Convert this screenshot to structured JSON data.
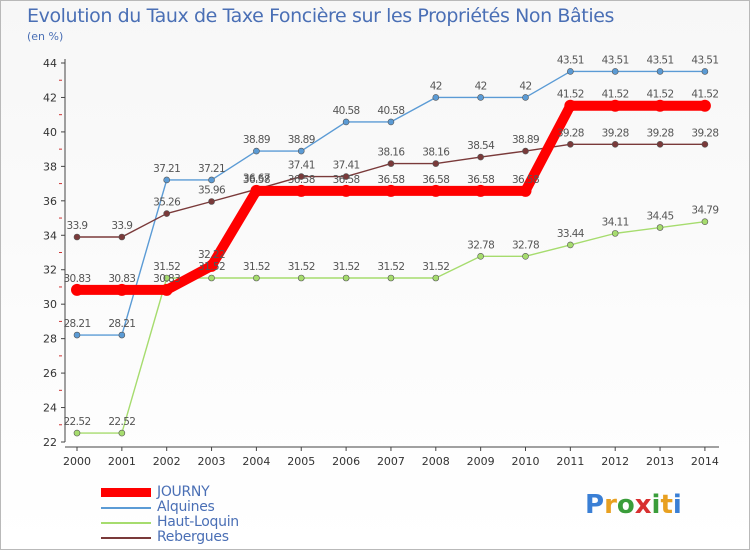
{
  "title": "Evolution du Taux de Taxe Foncière sur les Propriétés Non Bâties",
  "unit_label": "(en %)",
  "brand": {
    "letters": [
      "P",
      "r",
      "o",
      "x",
      "i",
      "t",
      "i"
    ],
    "colors": [
      "#3a7fd5",
      "#e8a020",
      "#3a9d3a",
      "#d83030",
      "#3a9d3a",
      "#e8a020",
      "#3a7fd5"
    ]
  },
  "chart_data": {
    "type": "line",
    "title": "Evolution du Taux de Taxe Foncière sur les Propriétés Non Bâties",
    "ylabel": "(en %)",
    "xlabel": "",
    "ylim": [
      22,
      44
    ],
    "yticks": [
      22,
      24,
      26,
      28,
      30,
      32,
      34,
      36,
      38,
      40,
      42,
      44
    ],
    "grid": false,
    "legend_position": "bottom-left",
    "x": [
      2000,
      2001,
      2002,
      2003,
      2004,
      2005,
      2006,
      2007,
      2008,
      2009,
      2010,
      2011,
      2012,
      2013,
      2014
    ],
    "series": [
      {
        "name": "JOURNY",
        "color": "#ff0000",
        "emphasis": true,
        "values": [
          30.83,
          30.83,
          30.83,
          32.22,
          36.58,
          36.58,
          36.58,
          36.58,
          36.58,
          36.58,
          36.58,
          41.52,
          41.52,
          41.52,
          41.52
        ],
        "labels": [
          "30.83",
          "30.83",
          "30.83",
          "32.22",
          "36.58",
          "36.58",
          "36.58",
          "36.58",
          "36.58",
          "36.58",
          "36.58",
          "41.52",
          "41.52",
          "41.52",
          "41.52"
        ]
      },
      {
        "name": "Alquines",
        "color": "#5b9bd5",
        "values": [
          28.21,
          28.21,
          37.21,
          37.21,
          38.89,
          38.89,
          40.58,
          40.58,
          42,
          42,
          42,
          43.51,
          43.51,
          43.51,
          43.51
        ],
        "labels": [
          "28.21",
          "28.21",
          "37.21",
          "37.21",
          "38.89",
          "38.89",
          "40.58",
          "40.58",
          "42",
          "42",
          "42",
          "43.51",
          "43.51",
          "43.51",
          "43.51"
        ]
      },
      {
        "name": "Haut-Loquin",
        "color": "#a6dc6e",
        "values": [
          22.52,
          22.52,
          31.52,
          31.52,
          31.52,
          31.52,
          31.52,
          31.52,
          31.52,
          32.78,
          32.78,
          33.44,
          34.11,
          34.45,
          34.79
        ],
        "labels": [
          "22.52",
          "22.52",
          "31.52",
          "31.52",
          "31.52",
          "31.52",
          "31.52",
          "31.52",
          "31.52",
          "32.78",
          "32.78",
          "33.44",
          "34.11",
          "34.45",
          "34.79"
        ]
      },
      {
        "name": "Rebergues",
        "color": "#7a3a3a",
        "values": [
          33.9,
          33.9,
          35.26,
          35.96,
          36.67,
          37.41,
          37.41,
          38.16,
          38.16,
          38.54,
          38.89,
          39.28,
          39.28,
          39.28,
          39.28
        ],
        "labels": [
          "33.9",
          "33.9",
          "35.26",
          "35.96",
          "36.67",
          "37.41",
          "37.41",
          "38.16",
          "38.16",
          "38.54",
          "38.89",
          "39.28",
          "39.28",
          "39.28",
          "39.28"
        ]
      }
    ]
  }
}
